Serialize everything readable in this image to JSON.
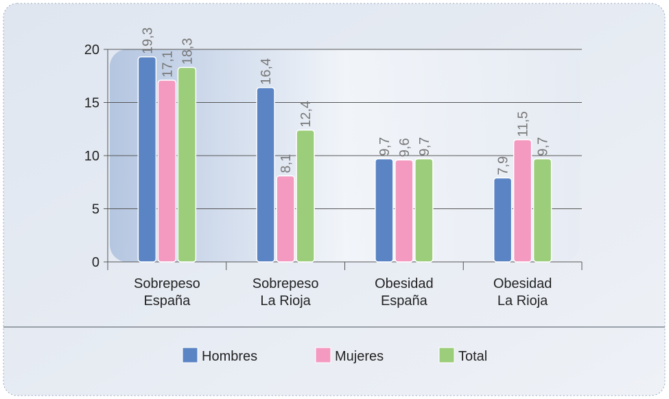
{
  "chart_data": {
    "type": "bar",
    "categories": [
      "Sobrepeso\nEspaña",
      "Sobrepeso\nLa Rioja",
      "Obesidad\nEspaña",
      "Obesidad\nLa Rioja"
    ],
    "series": [
      {
        "name": "Hombres",
        "color": "#5b84c4",
        "values": [
          19.3,
          16.4,
          9.7,
          7.9
        ],
        "value_labels": [
          "19,3",
          "16,4",
          "9,7",
          "7,9"
        ]
      },
      {
        "name": "Mujeres",
        "color": "#f49ac1",
        "values": [
          17.1,
          8.1,
          9.6,
          11.5
        ],
        "value_labels": [
          "17,1",
          "8,1",
          "9,6",
          "11,5"
        ]
      },
      {
        "name": "Total",
        "color": "#9ccd7a",
        "values": [
          18.3,
          12.4,
          9.7,
          9.7
        ],
        "value_labels": [
          "18,3",
          "12,4",
          "9,7",
          "9,7"
        ]
      }
    ],
    "ylim": [
      0,
      20
    ],
    "yticks": [
      0,
      5,
      10,
      15,
      20
    ],
    "grid": true
  }
}
